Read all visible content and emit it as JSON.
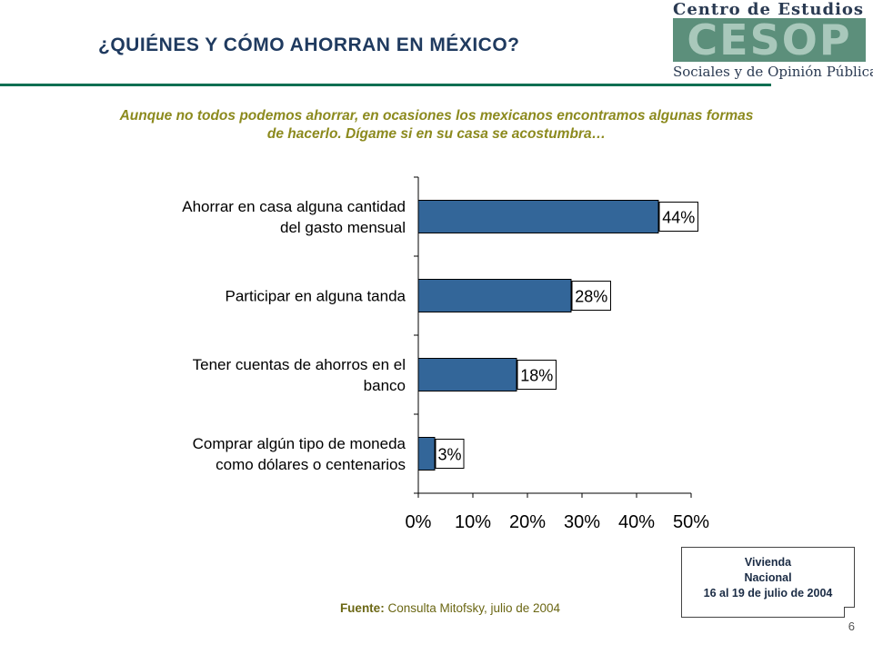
{
  "slide": {
    "title": "¿QUIÉNES Y CÓMO AHORRAN EN MÉXICO?",
    "subtitle_line1": "Aunque no todos podemos ahorrar, en ocasiones los mexicanos encontramos algunas formas",
    "subtitle_line2": "de hacerlo. Dígame si en su casa se acostumbra…",
    "page_number": "6"
  },
  "logo": {
    "top_text": "Centro de Estudios",
    "block_text": "CESOP",
    "bottom_text": "Sociales y de Opinión Pública"
  },
  "source": {
    "label": "Fuente:",
    "text": "Consulta Mitofsky,  julio de 2004"
  },
  "note": {
    "line1": "Vivienda",
    "line2": "Nacional",
    "line3": "16 al 19 de julio de 2004"
  },
  "colors": {
    "bar": "#336699",
    "title": "#1f3a5f",
    "subtitle": "#8c8a1e",
    "rule": "#0e6f52"
  },
  "chart_data": {
    "type": "bar",
    "orientation": "horizontal",
    "categories": [
      [
        "Ahorrar en casa alguna cantidad",
        "del gasto mensual"
      ],
      [
        "Participar en alguna tanda"
      ],
      [
        "Tener cuentas de ahorros en el",
        "banco"
      ],
      [
        "Comprar algún tipo de moneda",
        "como dólares o centenarios"
      ]
    ],
    "values": [
      44,
      28,
      18,
      3
    ],
    "data_labels": [
      "44%",
      "28%",
      "18%",
      "3%"
    ],
    "xlim": [
      0,
      50
    ],
    "x_ticks": [
      0,
      10,
      20,
      30,
      40,
      50
    ],
    "x_tick_labels": [
      "0%",
      "10%",
      "20%",
      "30%",
      "40%",
      "50%"
    ],
    "grid": false,
    "legend": "none"
  }
}
